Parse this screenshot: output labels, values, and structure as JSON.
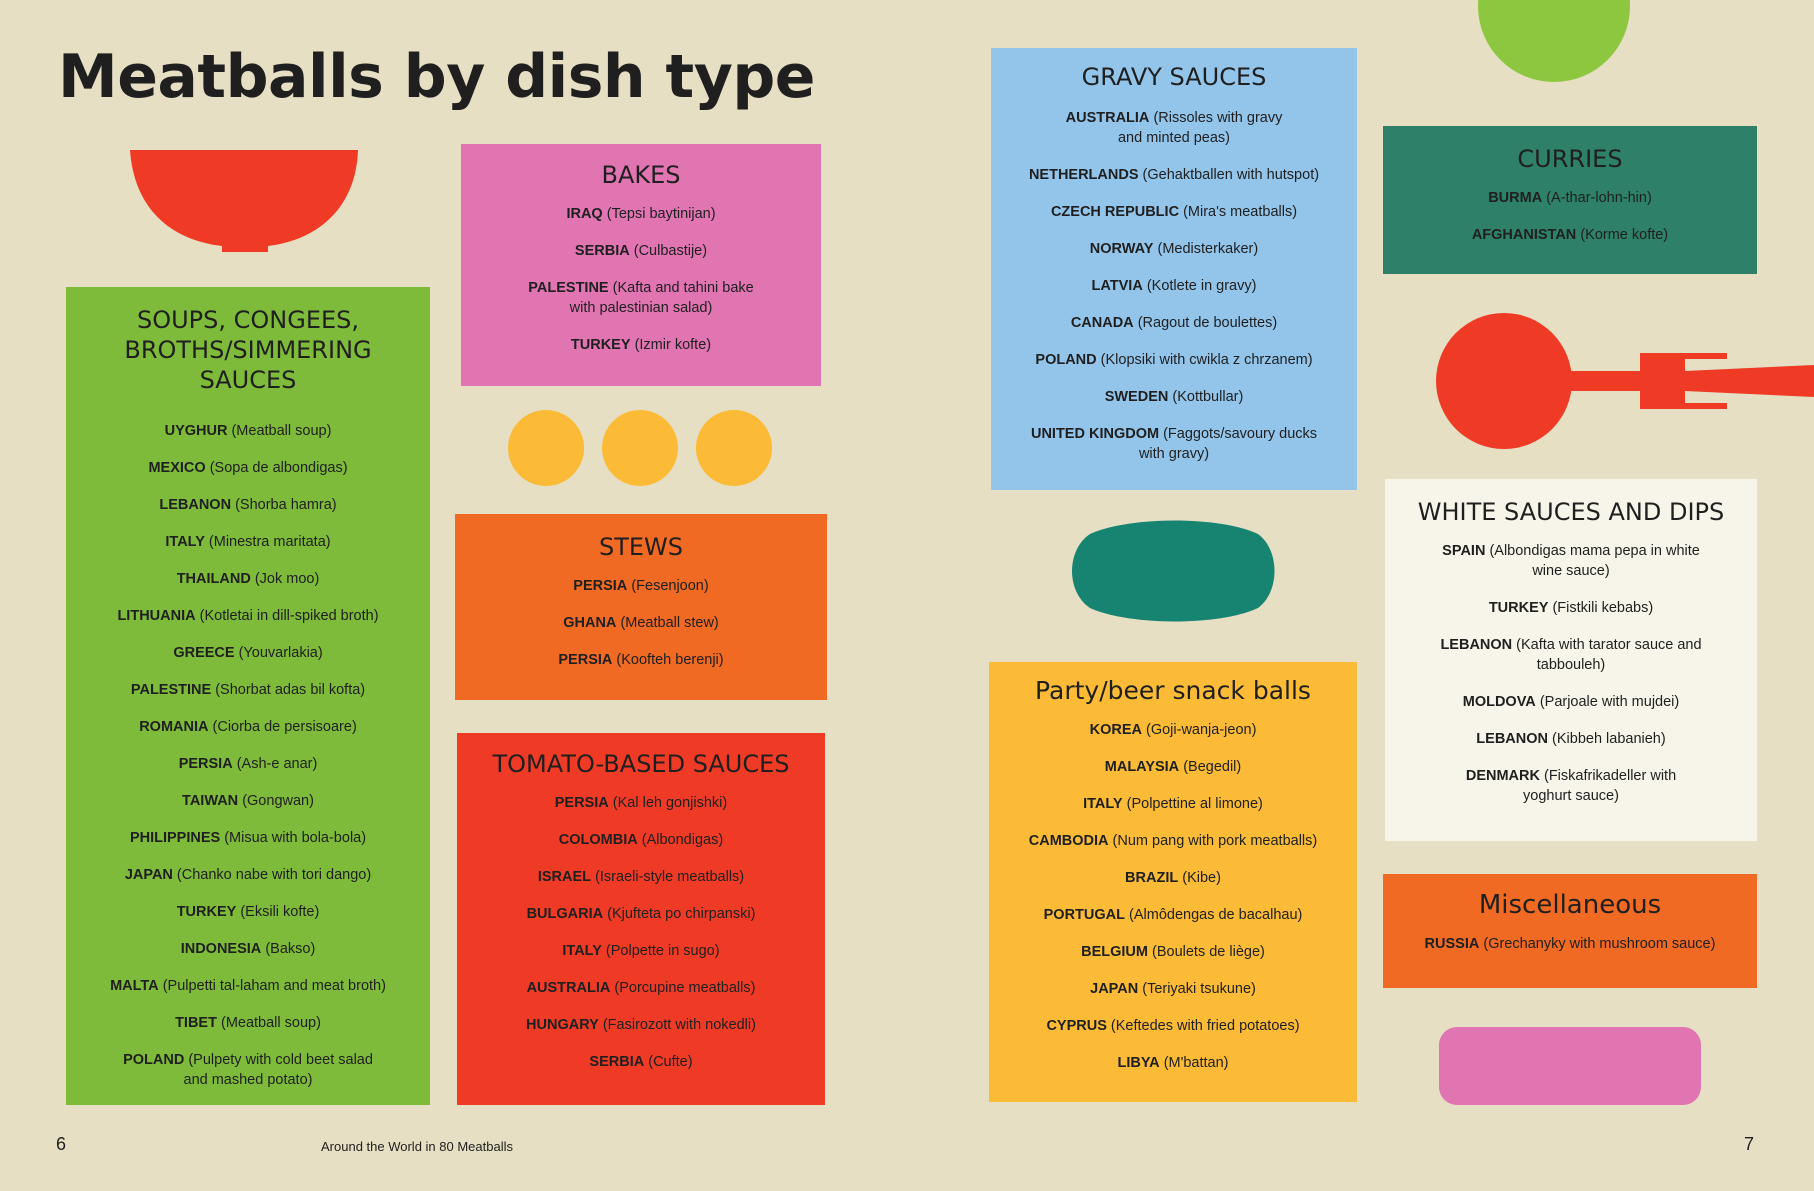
{
  "page_title": "Meatballs by dish type",
  "colors": {
    "background": "#e6dfc4",
    "green": "#7fbb3a",
    "pink": "#e075b1",
    "orange": "#f06a24",
    "red": "#ef3b26",
    "blue": "#93c5eb",
    "yellow": "#fbbb37",
    "teal": "#2e8068",
    "white": "#f7f5e9"
  },
  "sections": {
    "soups": {
      "title": "SOUPS, CONGEES, BROTHS/SIMMERING SAUCES",
      "items": [
        {
          "country": "UYGHUR",
          "dish": "(Meatball soup)"
        },
        {
          "country": "MEXICO",
          "dish": "(Sopa de albondigas)"
        },
        {
          "country": "LEBANON",
          "dish": "(Shorba hamra)"
        },
        {
          "country": "ITALY",
          "dish": "(Minestra maritata)"
        },
        {
          "country": "THAILAND",
          "dish": "(Jok moo)"
        },
        {
          "country": "LITHUANIA",
          "dish": "(Kotletai in dill-spiked broth)"
        },
        {
          "country": "GREECE",
          "dish": "(Youvarlakia)"
        },
        {
          "country": "PALESTINE",
          "dish": "(Shorbat adas bil kofta)"
        },
        {
          "country": "ROMANIA",
          "dish": "(Ciorba de persisoare)"
        },
        {
          "country": "PERSIA",
          "dish": "(Ash-e anar)"
        },
        {
          "country": "TAIWAN",
          "dish": "(Gongwan)"
        },
        {
          "country": "PHILIPPINES",
          "dish": "(Misua with bola-bola)"
        },
        {
          "country": "JAPAN",
          "dish": "(Chanko nabe with tori dango)"
        },
        {
          "country": "TURKEY",
          "dish": "(Eksili kofte)"
        },
        {
          "country": "INDONESIA",
          "dish": "(Bakso)"
        },
        {
          "country": "MALTA",
          "dish": "(Pulpetti tal-laham and meat broth)"
        },
        {
          "country": "TIBET",
          "dish": "(Meatball soup)"
        },
        {
          "country": "POLAND",
          "dish": "(Pulpety with cold beet salad and mashed potato)"
        }
      ]
    },
    "bakes": {
      "title": "BAKES",
      "items": [
        {
          "country": "IRAQ",
          "dish": "(Tepsi baytinijan)"
        },
        {
          "country": "SERBIA",
          "dish": "(Culbastije)"
        },
        {
          "country": "PALESTINE",
          "dish": "(Kafta and tahini bake with palestinian salad)"
        },
        {
          "country": "TURKEY",
          "dish": "(Izmir kofte)"
        }
      ]
    },
    "stews": {
      "title": "STEWS",
      "items": [
        {
          "country": "PERSIA",
          "dish": "(Fesenjoon)"
        },
        {
          "country": "GHANA",
          "dish": "(Meatball stew)"
        },
        {
          "country": "PERSIA",
          "dish": "(Koofteh berenji)"
        }
      ]
    },
    "tomato": {
      "title": "TOMATO-BASED SAUCES",
      "items": [
        {
          "country": "PERSIA",
          "dish": "(Kal leh gonjishki)"
        },
        {
          "country": "COLOMBIA",
          "dish": "(Albondigas)"
        },
        {
          "country": "ISRAEL",
          "dish": "(Israeli-style meatballs)"
        },
        {
          "country": "BULGARIA",
          "dish": "(Kjufteta po chirpanski)"
        },
        {
          "country": "ITALY",
          "dish": "(Polpette in sugo)"
        },
        {
          "country": "AUSTRALIA",
          "dish": "(Porcupine meatballs)"
        },
        {
          "country": "HUNGARY",
          "dish": "(Fasirozott with nokedli)"
        },
        {
          "country": "SERBIA",
          "dish": "(Cufte)"
        }
      ]
    },
    "gravy": {
      "title": "GRAVY SAUCES",
      "items": [
        {
          "country": "AUSTRALIA",
          "dish": "(Rissoles with gravy and minted peas)"
        },
        {
          "country": "NETHERLANDS",
          "dish": "(Gehaktballen with hutspot)"
        },
        {
          "country": "CZECH REPUBLIC",
          "dish": "(Mira's meatballs)"
        },
        {
          "country": "NORWAY",
          "dish": "(Medisterkaker)"
        },
        {
          "country": "LATVIA",
          "dish": "(Kotlete in gravy)"
        },
        {
          "country": "CANADA",
          "dish": "(Ragout de boulettes)"
        },
        {
          "country": "POLAND",
          "dish": "(Klopsiki with cwikla z chrzanem)"
        },
        {
          "country": "SWEDEN",
          "dish": "(Kottbullar)"
        },
        {
          "country": "UNITED KINGDOM",
          "dish": "(Faggots/savoury ducks with gravy)"
        }
      ]
    },
    "party": {
      "title": "Party/beer snack balls",
      "items": [
        {
          "country": "KOREA",
          "dish": "(Goji-wanja-jeon)"
        },
        {
          "country": "MALAYSIA",
          "dish": "(Begedil)"
        },
        {
          "country": "ITALY",
          "dish": "(Polpettine al limone)"
        },
        {
          "country": "CAMBODIA",
          "dish": "(Num pang with pork meatballs)"
        },
        {
          "country": "BRAZIL",
          "dish": "(Kibe)"
        },
        {
          "country": "PORTUGAL",
          "dish": "(Almôdengas de bacalhau)"
        },
        {
          "country": "BELGIUM",
          "dish": "(Boulets de liège)"
        },
        {
          "country": "JAPAN",
          "dish": "(Teriyaki tsukune)"
        },
        {
          "country": "CYPRUS",
          "dish": "(Keftedes with fried potatoes)"
        },
        {
          "country": "LIBYA",
          "dish": "(M'battan)"
        }
      ]
    },
    "curries": {
      "title": "CURRIES",
      "items": [
        {
          "country": "BURMA",
          "dish": "(A-thar-lohn-hin)"
        },
        {
          "country": "AFGHANISTAN",
          "dish": "(Korme kofte)"
        }
      ]
    },
    "white": {
      "title": "WHITE SAUCES AND DIPS",
      "items": [
        {
          "country": "SPAIN",
          "dish": "(Albondigas mama pepa in white wine sauce)"
        },
        {
          "country": "TURKEY",
          "dish": "(Fistkili kebabs)"
        },
        {
          "country": "LEBANON",
          "dish": "(Kafta with tarator sauce and tabbouleh)"
        },
        {
          "country": "MOLDOVA",
          "dish": "(Parjoale with mujdei)"
        },
        {
          "country": "LEBANON",
          "dish": "(Kibbeh labanieh)"
        },
        {
          "country": "DENMARK",
          "dish": "(Fiskafrikadeller with yoghurt sauce)"
        }
      ]
    },
    "misc": {
      "title": "Miscellaneous",
      "items": [
        {
          "country": "RUSSIA",
          "dish": "(Grechanyky with mushroom sauce)"
        }
      ]
    }
  },
  "footer": {
    "page_left": "6",
    "book_title": "Around the World in 80 Meatballs",
    "page_right": "7"
  },
  "icons": [
    "bowl-icon",
    "meatball-trio-icon",
    "fork-icon",
    "green-circle",
    "teal-oval",
    "pink-pill"
  ]
}
